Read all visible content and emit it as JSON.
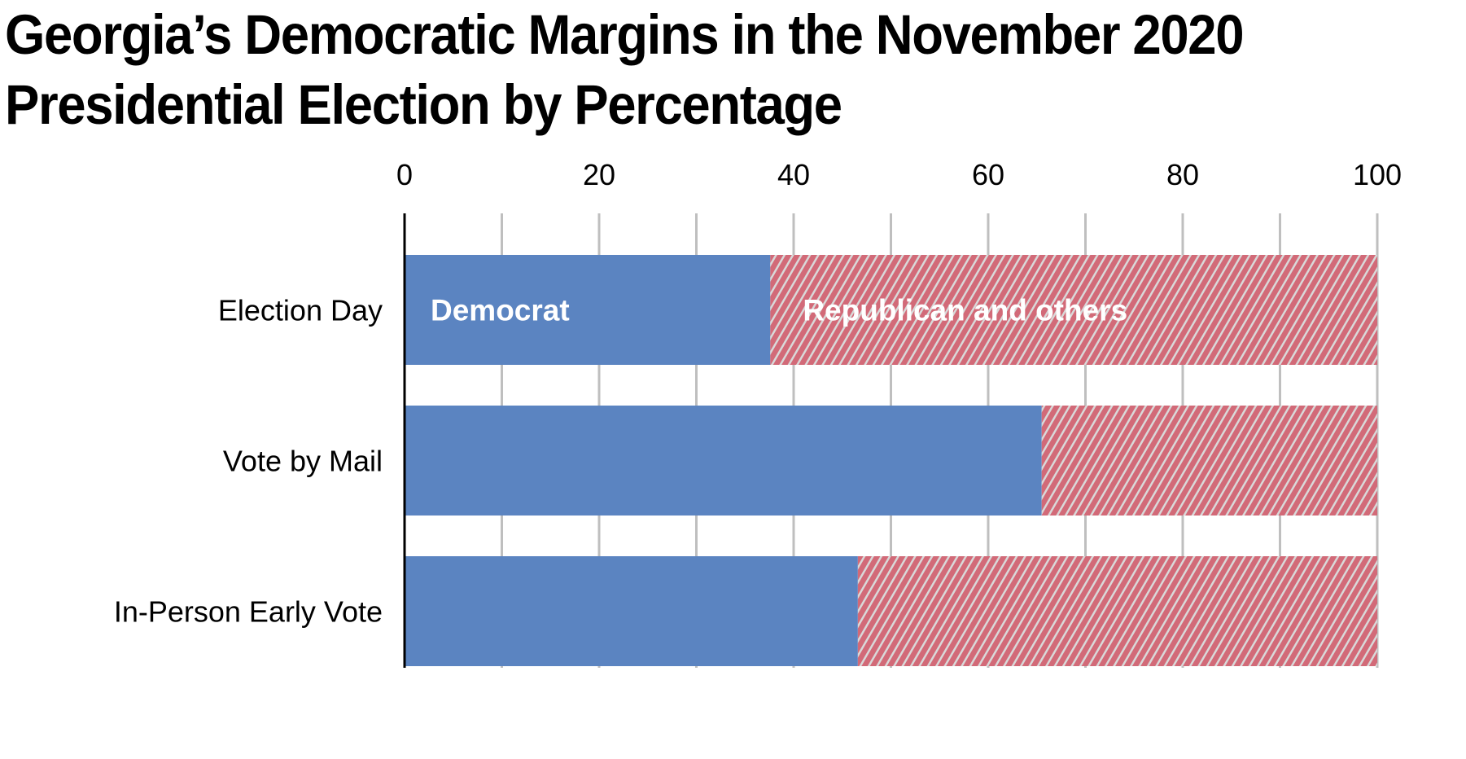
{
  "chart_data": {
    "type": "bar",
    "orientation": "horizontal",
    "stacked": true,
    "title_lines": [
      "Georgia’s Democratic Margins in the November 2020",
      "Presidential Election by Percentage"
    ],
    "categories": [
      "Election Day",
      "Vote by Mail",
      "In-Person Early Vote"
    ],
    "series": [
      {
        "name": "Democrat",
        "values": [
          37.6,
          65.5,
          46.6
        ],
        "color": "#5B84C1"
      },
      {
        "name": "Republican and others",
        "values": [
          62.4,
          34.5,
          53.4
        ],
        "color": "#D26A78",
        "pattern": "diagonal-hatch"
      }
    ],
    "xlim": [
      0,
      100
    ],
    "xticks": [
      "0",
      "20",
      "40",
      "60",
      "80",
      "100"
    ],
    "grid": true,
    "grid_color": "#BFBFBF",
    "legend": "inline-labels-on-first-bar"
  }
}
